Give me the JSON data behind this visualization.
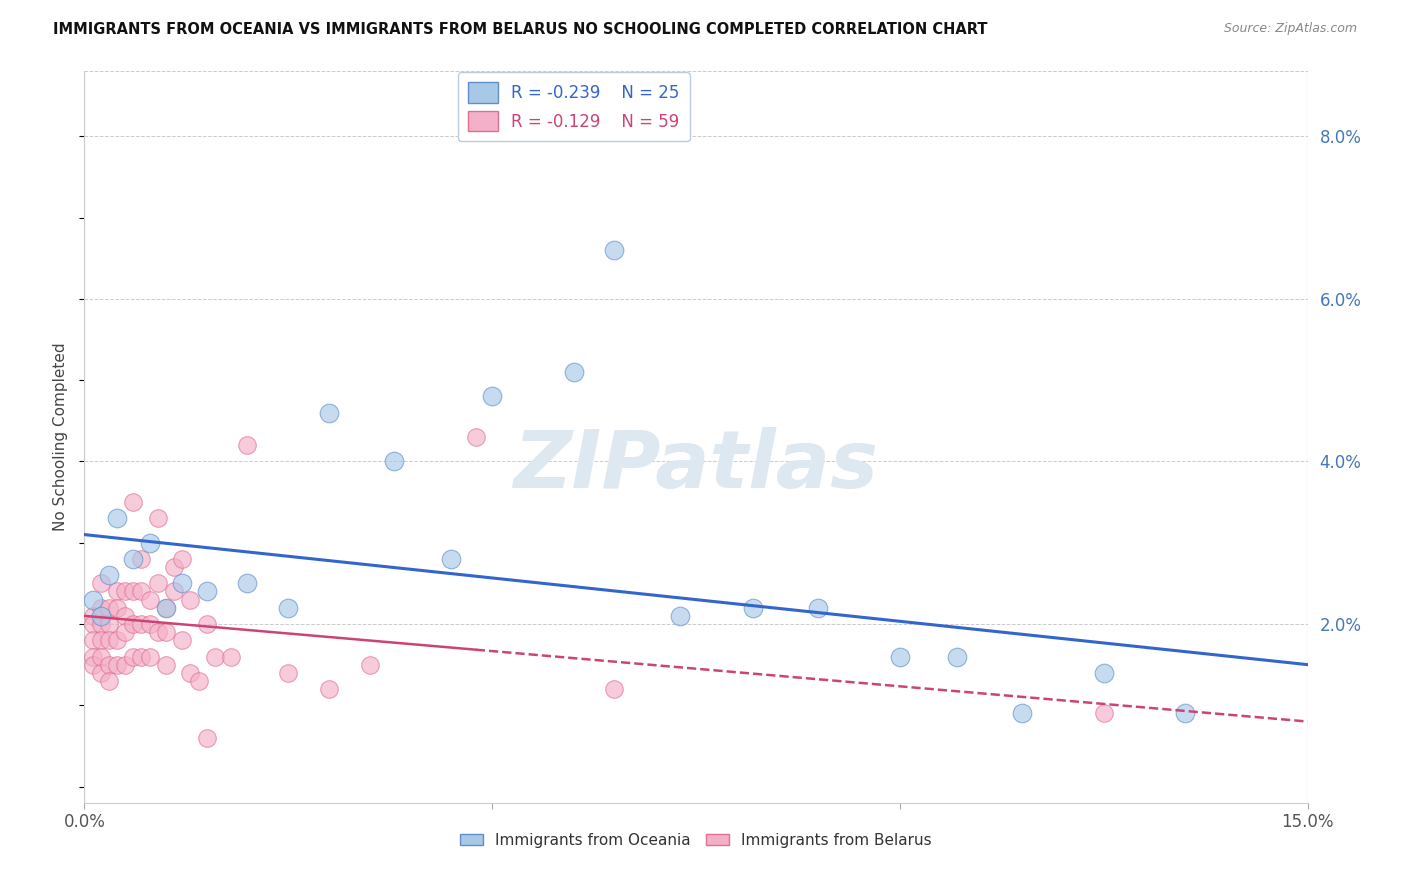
{
  "title": "IMMIGRANTS FROM OCEANIA VS IMMIGRANTS FROM BELARUS NO SCHOOLING COMPLETED CORRELATION CHART",
  "source": "Source: ZipAtlas.com",
  "ylabel": "No Schooling Completed",
  "xlim": [
    0.0,
    0.15
  ],
  "ylim": [
    -0.002,
    0.088
  ],
  "yticks_right": [
    0.02,
    0.04,
    0.06,
    0.08
  ],
  "ytick_labels_right": [
    "2.0%",
    "4.0%",
    "6.0%",
    "8.0%"
  ],
  "r_oceania": -0.239,
  "n_oceania": 25,
  "r_belarus": -0.129,
  "n_belarus": 59,
  "color_oceania": "#a8c8e8",
  "color_belarus": "#f4b0c8",
  "edge_color_oceania": "#6090c8",
  "edge_color_belarus": "#e07090",
  "trend_color_oceania": "#3366cc",
  "trend_color_belarus": "#cc4477",
  "watermark": "ZIPatlas",
  "watermark_color": "#dde8f0",
  "legend_x_oceania": "Immigrants from Oceania",
  "legend_x_belarus": "Immigrants from Belarus",
  "oceania_x": [
    0.001,
    0.002,
    0.003,
    0.004,
    0.006,
    0.008,
    0.01,
    0.012,
    0.015,
    0.02,
    0.025,
    0.03,
    0.038,
    0.045,
    0.05,
    0.06,
    0.065,
    0.073,
    0.082,
    0.09,
    0.1,
    0.107,
    0.115,
    0.125,
    0.135
  ],
  "oceania_y": [
    0.023,
    0.021,
    0.026,
    0.033,
    0.028,
    0.03,
    0.022,
    0.025,
    0.024,
    0.025,
    0.022,
    0.046,
    0.04,
    0.028,
    0.048,
    0.051,
    0.066,
    0.021,
    0.022,
    0.022,
    0.016,
    0.016,
    0.009,
    0.014,
    0.009
  ],
  "belarus_x": [
    0.001,
    0.001,
    0.001,
    0.001,
    0.001,
    0.002,
    0.002,
    0.002,
    0.002,
    0.002,
    0.002,
    0.003,
    0.003,
    0.003,
    0.003,
    0.003,
    0.004,
    0.004,
    0.004,
    0.004,
    0.005,
    0.005,
    0.005,
    0.005,
    0.006,
    0.006,
    0.006,
    0.006,
    0.007,
    0.007,
    0.007,
    0.007,
    0.008,
    0.008,
    0.008,
    0.009,
    0.009,
    0.009,
    0.01,
    0.01,
    0.01,
    0.011,
    0.011,
    0.012,
    0.012,
    0.013,
    0.013,
    0.014,
    0.015,
    0.015,
    0.016,
    0.018,
    0.02,
    0.025,
    0.03,
    0.035,
    0.048,
    0.065,
    0.125
  ],
  "belarus_y": [
    0.021,
    0.02,
    0.018,
    0.016,
    0.015,
    0.025,
    0.022,
    0.02,
    0.018,
    0.016,
    0.014,
    0.022,
    0.02,
    0.018,
    0.015,
    0.013,
    0.024,
    0.022,
    0.018,
    0.015,
    0.024,
    0.021,
    0.019,
    0.015,
    0.035,
    0.024,
    0.02,
    0.016,
    0.028,
    0.024,
    0.02,
    0.016,
    0.023,
    0.02,
    0.016,
    0.033,
    0.025,
    0.019,
    0.022,
    0.019,
    0.015,
    0.027,
    0.024,
    0.028,
    0.018,
    0.023,
    0.014,
    0.013,
    0.02,
    0.006,
    0.016,
    0.016,
    0.042,
    0.014,
    0.012,
    0.015,
    0.043,
    0.012,
    0.009
  ]
}
